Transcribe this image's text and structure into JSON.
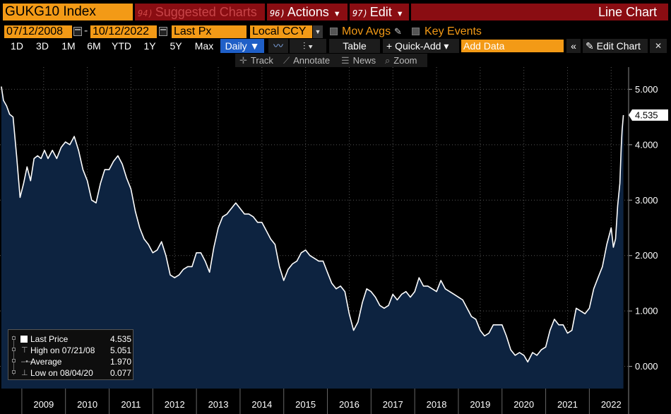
{
  "header": {
    "ticker": "GUKG10 Index",
    "suggested": {
      "num": "94)",
      "label": "Suggested Charts"
    },
    "actions": {
      "num": "96)",
      "label": "Actions"
    },
    "edit": {
      "num": "97)",
      "label": "Edit"
    },
    "chart_type": "Line Chart"
  },
  "controls": {
    "start_date": "07/12/2008",
    "end_date": "10/12/2022",
    "field": "Last Px",
    "currency": "Local CCY",
    "mov_avgs": "Mov Avgs",
    "key_events": "Key Events"
  },
  "periods": [
    "1D",
    "3D",
    "1M",
    "6M",
    "YTD",
    "1Y",
    "5Y",
    "Max"
  ],
  "frequency": "Daily",
  "toolbar": {
    "table": "Table",
    "quick_add": "Quick-Add",
    "add_data_placeholder": "Add Data",
    "edit_chart": "Edit Chart"
  },
  "tools": {
    "track": "Track",
    "annotate": "Annotate",
    "news": "News",
    "zoom": "Zoom"
  },
  "legend": {
    "last_label": "Last Price",
    "last_value": "4.535",
    "high_label": "High on 07/21/08",
    "high_value": "5.051",
    "avg_label": "Average",
    "avg_value": "1.970",
    "low_label": "Low on 08/04/20",
    "low_value": "0.077"
  },
  "colors": {
    "accent": "#f39a16",
    "header_red": "#8a0d12",
    "area_fill": "#0d2340",
    "line": "#ffffff",
    "selected": "#1f5fc7"
  },
  "chart_data": {
    "type": "area",
    "series": [
      {
        "x": [
          2008.53,
          2008.58,
          2008.65,
          2008.72,
          2008.8,
          2008.88,
          2008.96,
          2009.04,
          2009.12,
          2009.2,
          2009.28,
          2009.36,
          2009.44,
          2009.52,
          2009.6,
          2009.7,
          2009.8,
          2009.9,
          2010.0,
          2010.1,
          2010.2,
          2010.3,
          2010.4,
          2010.5,
          2010.6,
          2010.7,
          2010.8,
          2010.9,
          2011.0,
          2011.1,
          2011.2,
          2011.3,
          2011.4,
          2011.5,
          2011.6,
          2011.7,
          2011.8,
          2011.9,
          2012.0,
          2012.1,
          2012.2,
          2012.3,
          2012.4,
          2012.5,
          2012.6,
          2012.7,
          2012.8,
          2012.9,
          2013.0,
          2013.1,
          2013.2,
          2013.3,
          2013.4,
          2013.5,
          2013.6,
          2013.7,
          2013.8,
          2013.9,
          2014.0,
          2014.1,
          2014.2,
          2014.3,
          2014.4,
          2014.5,
          2014.6,
          2014.7,
          2014.8,
          2014.9,
          2015.0,
          2015.1,
          2015.2,
          2015.3,
          2015.4,
          2015.5,
          2015.6,
          2015.7,
          2015.8,
          2015.9,
          2016.0,
          2016.1,
          2016.2,
          2016.3,
          2016.4,
          2016.5,
          2016.6,
          2016.7,
          2016.8,
          2016.9,
          2017.0,
          2017.1,
          2017.2,
          2017.3,
          2017.4,
          2017.5,
          2017.6,
          2017.7,
          2017.8,
          2017.9,
          2018.0,
          2018.1,
          2018.2,
          2018.3,
          2018.4,
          2018.5,
          2018.6,
          2018.7,
          2018.8,
          2018.9,
          2019.0,
          2019.1,
          2019.2,
          2019.3,
          2019.4,
          2019.5,
          2019.6,
          2019.7,
          2019.8,
          2019.9,
          2020.0,
          2020.1,
          2020.2,
          2020.3,
          2020.4,
          2020.5,
          2020.59,
          2020.7,
          2020.8,
          2020.9,
          2021.0,
          2021.1,
          2021.2,
          2021.3,
          2021.4,
          2021.5,
          2021.6,
          2021.7,
          2021.8,
          2021.9,
          2022.0,
          2022.1,
          2022.2,
          2022.3,
          2022.4,
          2022.5,
          2022.55,
          2022.6,
          2022.65,
          2022.7,
          2022.73,
          2022.75,
          2022.78
        ],
        "y": [
          5.05,
          4.8,
          4.7,
          4.55,
          4.5,
          3.8,
          3.05,
          3.3,
          3.6,
          3.35,
          3.75,
          3.8,
          3.75,
          3.9,
          3.75,
          3.9,
          3.75,
          3.95,
          4.05,
          4.0,
          4.15,
          3.9,
          3.55,
          3.35,
          3.0,
          2.95,
          3.3,
          3.55,
          3.55,
          3.7,
          3.8,
          3.65,
          3.4,
          3.2,
          2.8,
          2.5,
          2.3,
          2.2,
          2.05,
          2.1,
          2.25,
          2.0,
          1.65,
          1.6,
          1.65,
          1.75,
          1.8,
          1.8,
          2.05,
          2.05,
          1.9,
          1.7,
          2.15,
          2.5,
          2.7,
          2.75,
          2.85,
          2.95,
          2.85,
          2.75,
          2.75,
          2.7,
          2.6,
          2.6,
          2.45,
          2.3,
          2.2,
          1.8,
          1.55,
          1.75,
          1.85,
          1.9,
          2.05,
          2.1,
          2.0,
          1.95,
          1.9,
          1.9,
          1.7,
          1.5,
          1.4,
          1.45,
          1.35,
          0.95,
          0.65,
          0.8,
          1.15,
          1.4,
          1.35,
          1.25,
          1.1,
          1.05,
          1.1,
          1.3,
          1.2,
          1.3,
          1.35,
          1.25,
          1.35,
          1.6,
          1.45,
          1.45,
          1.4,
          1.35,
          1.55,
          1.4,
          1.35,
          1.3,
          1.25,
          1.2,
          1.05,
          0.9,
          0.85,
          0.65,
          0.55,
          0.6,
          0.75,
          0.75,
          0.75,
          0.55,
          0.3,
          0.2,
          0.25,
          0.2,
          0.08,
          0.25,
          0.2,
          0.3,
          0.35,
          0.65,
          0.85,
          0.75,
          0.75,
          0.6,
          0.65,
          1.05,
          1.0,
          0.95,
          1.05,
          1.4,
          1.6,
          1.8,
          2.2,
          2.5,
          2.15,
          2.3,
          2.9,
          3.3,
          3.95,
          4.25,
          4.535
        ]
      }
    ],
    "xlim": [
      2008.5,
      2022.9
    ],
    "ylim": [
      -0.4,
      5.4
    ],
    "yticks": [
      "5.000",
      "4.000",
      "3.000",
      "2.000",
      "1.000",
      "0.000"
    ],
    "ytick_values": [
      5,
      4,
      3,
      2,
      1,
      0
    ],
    "xticks": [
      "2009",
      "2010",
      "2011",
      "2012",
      "2013",
      "2014",
      "2015",
      "2016",
      "2017",
      "2018",
      "2019",
      "2020",
      "2021",
      "2022"
    ],
    "last_value_label": "4.535",
    "grid": true
  }
}
